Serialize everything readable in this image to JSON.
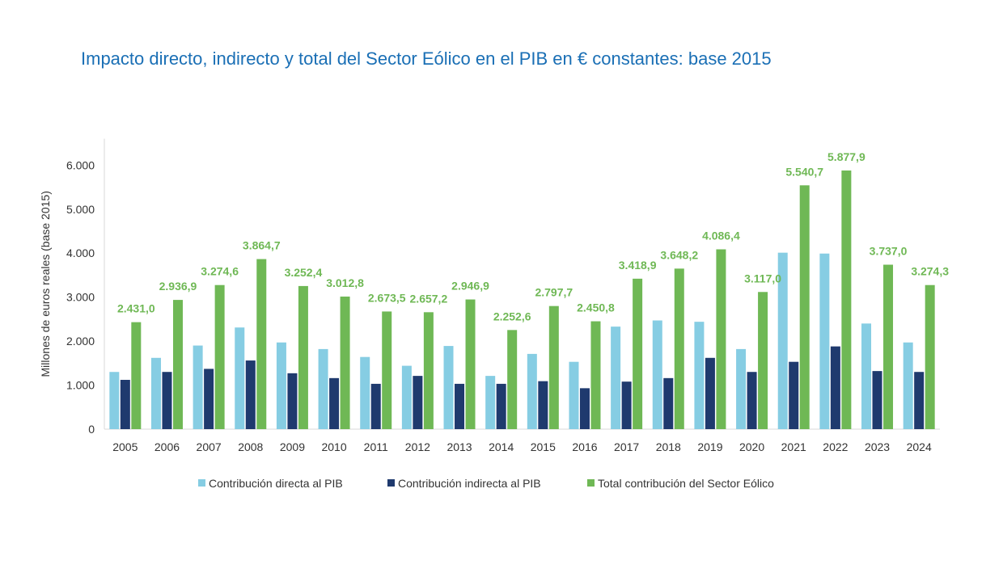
{
  "chart_data": {
    "type": "bar",
    "title": "Impacto directo, indirecto y total del Sector Eólico en el PIB en € constantes: base 2015",
    "xlabel": "",
    "ylabel": "Millones de euros reales (base 2015)",
    "ylim": [
      0,
      6600
    ],
    "yticks": [
      0,
      1000,
      2000,
      3000,
      4000,
      5000,
      6000
    ],
    "ytick_labels": [
      "0",
      "1.000",
      "2.000",
      "3.000",
      "4.000",
      "5.000",
      "6.000"
    ],
    "grid": false,
    "legend_position": "bottom",
    "categories": [
      "2005",
      "2006",
      "2007",
      "2008",
      "2009",
      "2010",
      "2011",
      "2012",
      "2013",
      "2014",
      "2015",
      "2016",
      "2017",
      "2018",
      "2019",
      "2020",
      "2021",
      "2022",
      "2023",
      "2024"
    ],
    "series": [
      {
        "name": "Contribución directa al PIB",
        "color": "#86cde3",
        "values": [
          1300,
          1620,
          1900,
          2310,
          1970,
          1820,
          1640,
          1440,
          1890,
          1210,
          1710,
          1530,
          2330,
          2470,
          2440,
          1820,
          4010,
          3990,
          2400,
          1970
        ]
      },
      {
        "name": "Contribución indirecta al PIB",
        "color": "#1f3a6e",
        "values": [
          1120,
          1300,
          1370,
          1560,
          1270,
          1160,
          1030,
          1210,
          1030,
          1030,
          1090,
          930,
          1080,
          1160,
          1620,
          1300,
          1530,
          1880,
          1320,
          1300
        ]
      },
      {
        "name": "Total contribución del Sector Eólico",
        "color": "#6fb855",
        "values": [
          2431.0,
          2936.9,
          3274.6,
          3864.7,
          3252.4,
          3012.8,
          2673.5,
          2657.2,
          2946.9,
          2252.6,
          2797.7,
          2450.8,
          3418.9,
          3648.2,
          4086.4,
          3117.0,
          5540.7,
          5877.9,
          3737.0,
          3274.3
        ],
        "labels": [
          "2.431,0",
          "2.936,9",
          "3.274,6",
          "3.864,7",
          "3.252,4",
          "3.012,8",
          "2.673,5",
          "2.657,2",
          "2.946,9",
          "2.252,6",
          "2.797,7",
          "2.450,8",
          "3.418,9",
          "3.648,2",
          "4.086,4",
          "3.117,0",
          "5.540,7",
          "5.877,9",
          "3.737,0",
          "3.274,3"
        ]
      }
    ]
  }
}
